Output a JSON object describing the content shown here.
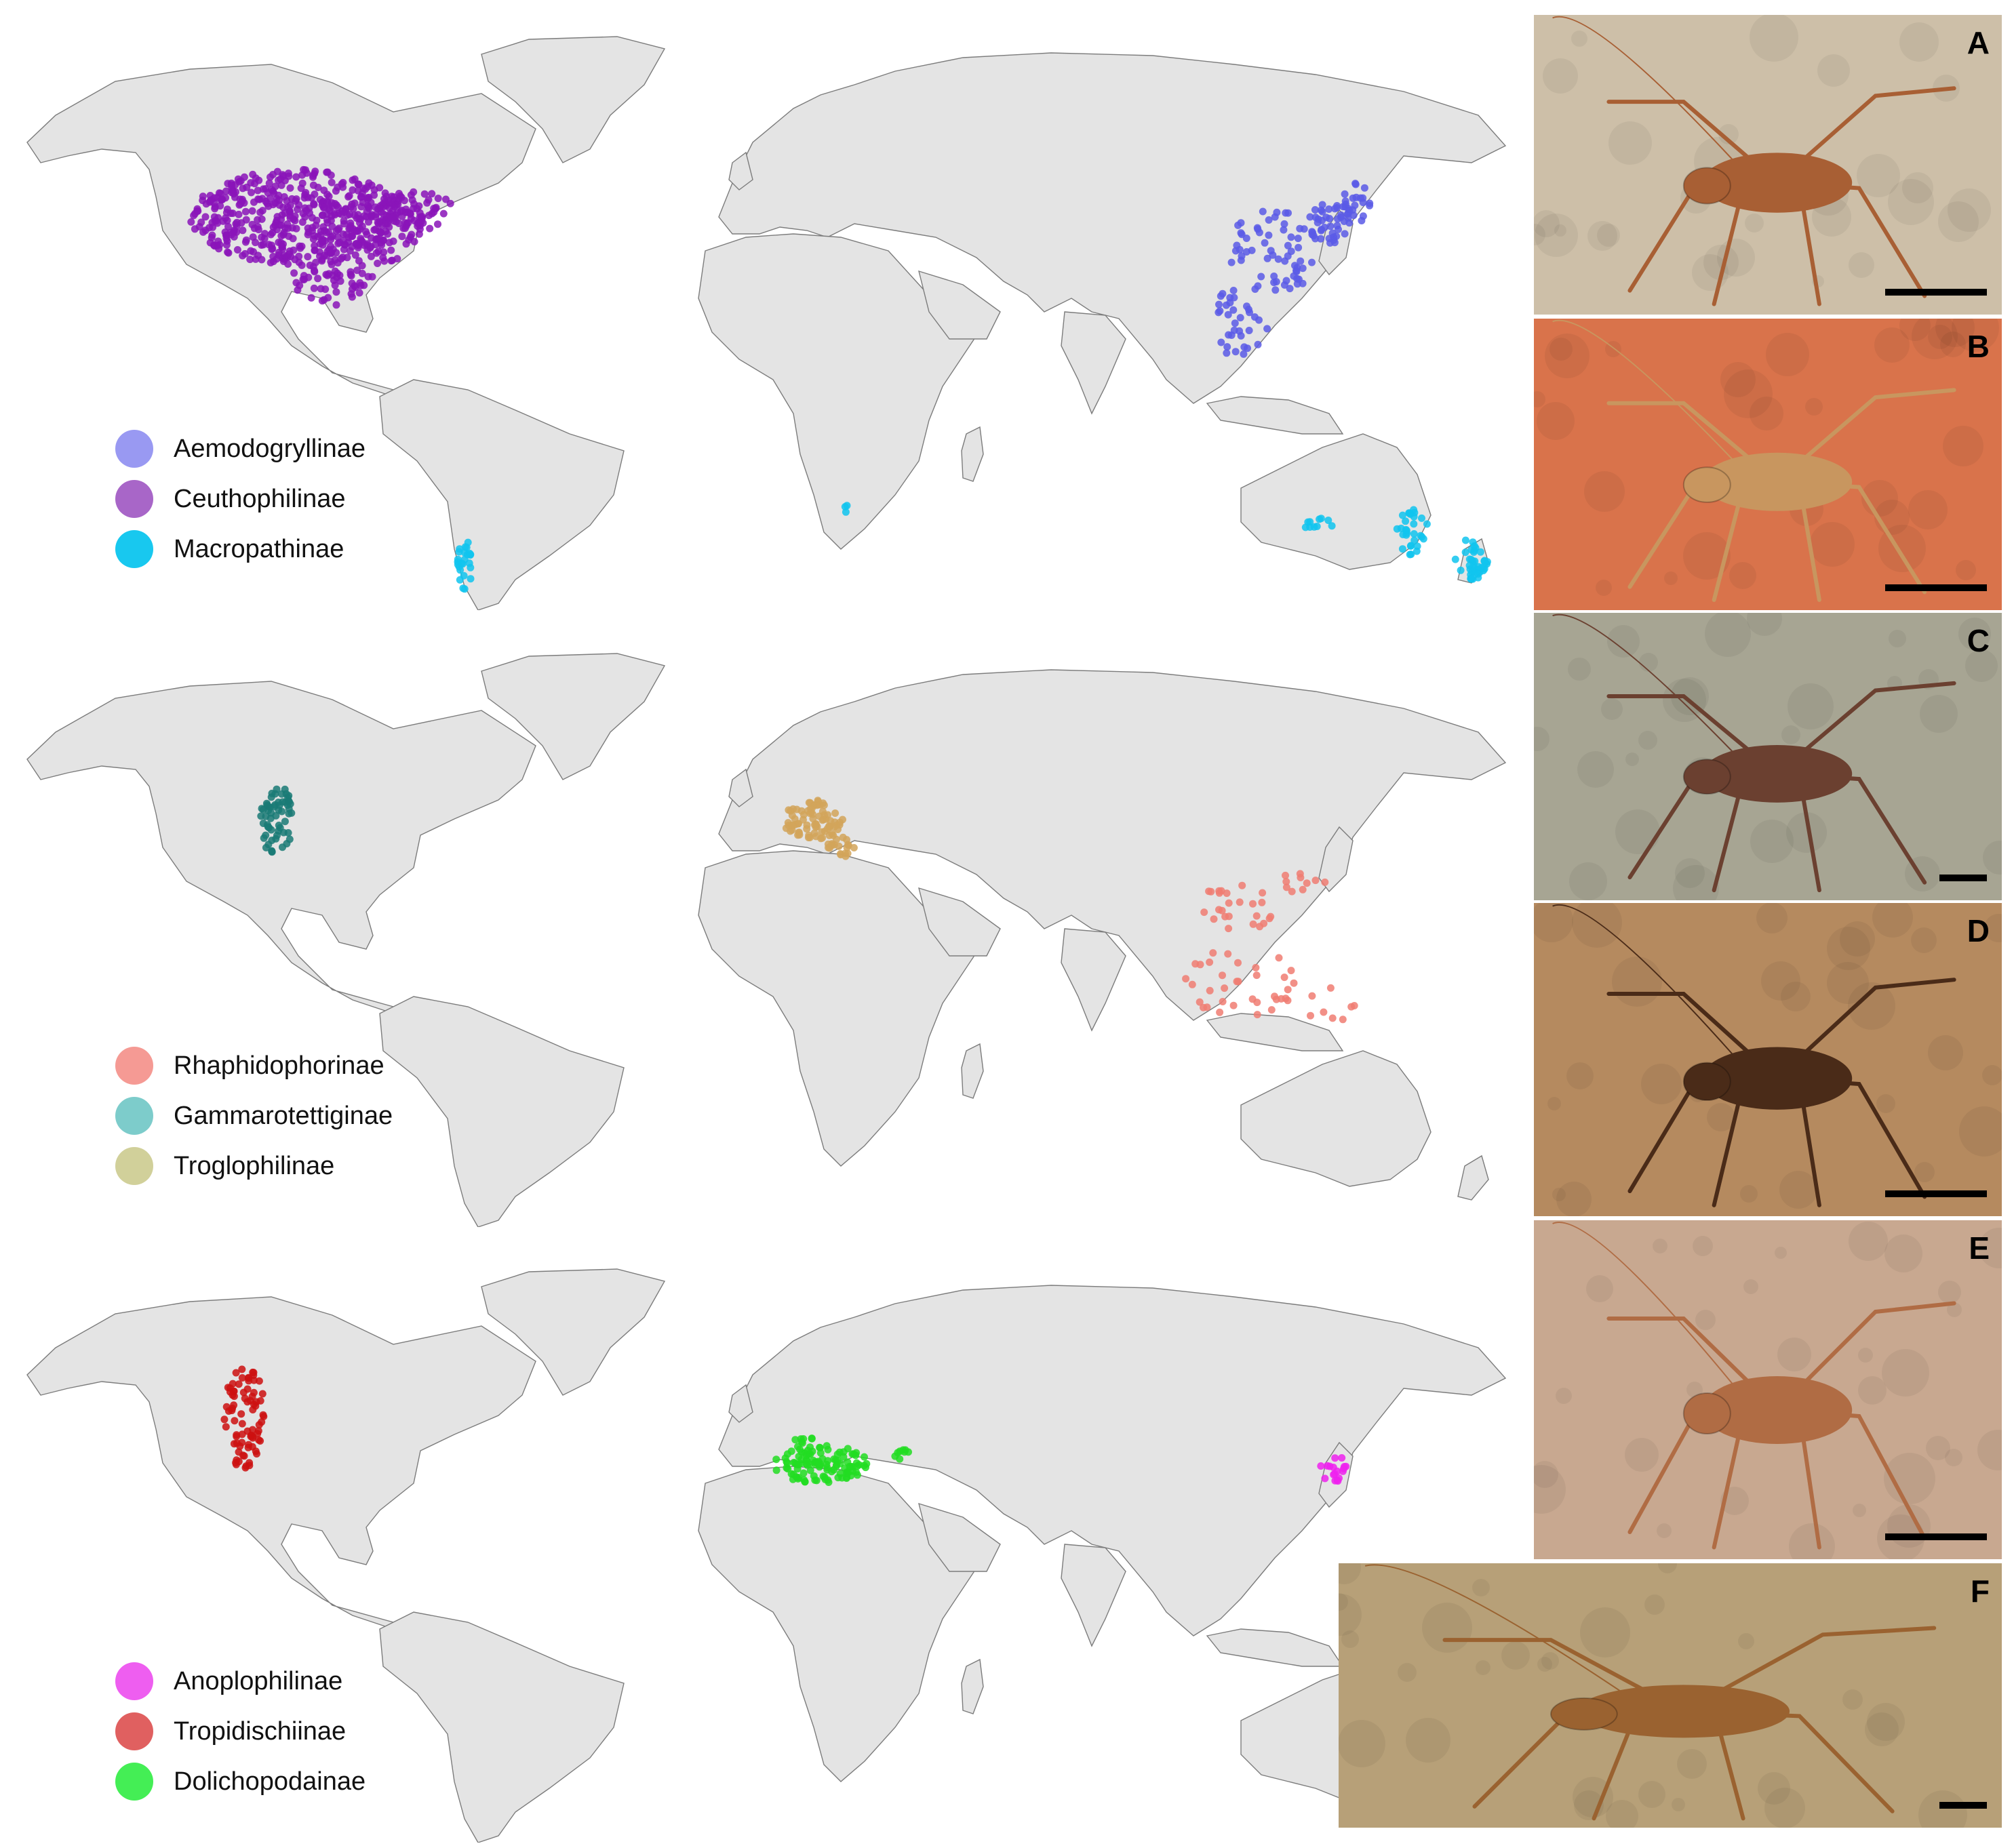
{
  "maps": [
    {
      "legend": [
        {
          "name": "Aemodogryllinae",
          "color": "#9999f2"
        },
        {
          "name": "Ceuthophilinae",
          "color": "#a866c8"
        },
        {
          "name": "Macropathinae",
          "color": "#18c8ef"
        }
      ]
    },
    {
      "legend": [
        {
          "name": "Rhaphidophorinae",
          "color": "#f59a94"
        },
        {
          "name": "Gammarotettiginae",
          "color": "#7dcccb"
        },
        {
          "name": "Troglophilinae",
          "color": "#d1d09a"
        }
      ]
    },
    {
      "legend": [
        {
          "name": "Anoplophilinae",
          "color": "#ee5ef0"
        },
        {
          "name": "Tropidischiinae",
          "color": "#e06060"
        },
        {
          "name": "Dolichopodainae",
          "color": "#44ee55"
        }
      ]
    }
  ],
  "point_colors": {
    "aemodogryllinae": "#5b5be6",
    "ceuthophilinae": "#8a14b8",
    "macropathinae": "#10c4ee",
    "rhaphidophorinae": "#f07d72",
    "gammarotettiginae": "#1a7a76",
    "troglophilinae": "#d2a45a",
    "anoplophilinae": "#ee22ee",
    "tropidischiinae": "#cc1010",
    "dolichopodainae": "#22dd22"
  },
  "photos": [
    {
      "letter": "A",
      "bg": "#cdbfa8",
      "body": "#a85f34"
    },
    {
      "letter": "B",
      "bg": "#d9734b",
      "body": "#c8965f"
    },
    {
      "letter": "C",
      "bg": "#a7a593",
      "body": "#6b4030"
    },
    {
      "letter": "D",
      "bg": "#b58a5f",
      "body": "#4a2b18"
    },
    {
      "letter": "E",
      "bg": "#c8a890",
      "body": "#b06c44"
    },
    {
      "letter": "F",
      "bg": "#b7a078",
      "body": "#9a6230"
    }
  ]
}
